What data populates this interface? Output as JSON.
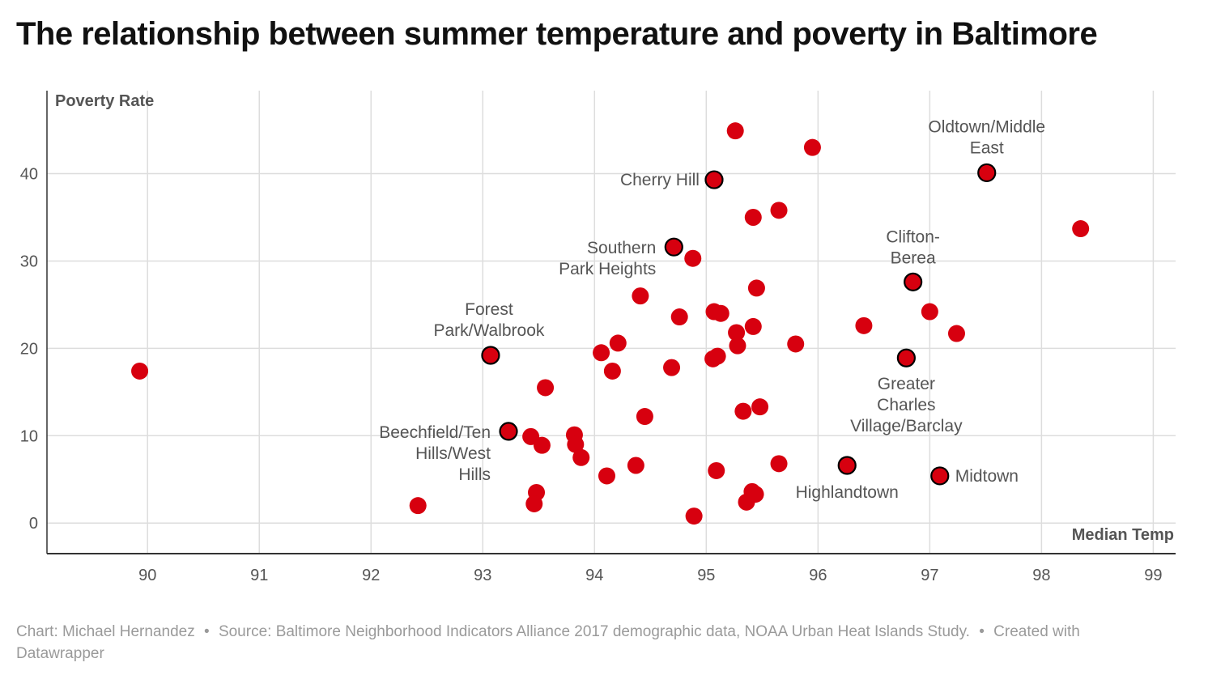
{
  "header": {
    "title": "The relationship between summer temperature and poverty in Baltimore"
  },
  "footer": {
    "author": "Chart: Michael Hernandez",
    "source": "Source: Baltimore Neighborhood Indicators Alliance 2017 demographic data, NOAA Urban Heat Islands Study.",
    "credit": "Created with Datawrapper",
    "separator": "•"
  },
  "colors": {
    "dot": "#d7000f",
    "dot_outline_highlight": "#000000",
    "grid": "#dddddd",
    "axis": "#333333",
    "text": "#555555"
  },
  "chart_data": {
    "type": "scatter",
    "xlabel": "Median Temp",
    "ylabel": "Poverty Rate",
    "xlim": [
      89.1,
      99.2
    ],
    "ylim": [
      -3.5,
      49.5
    ],
    "xticks": [
      90,
      91,
      92,
      93,
      94,
      95,
      96,
      97,
      98,
      99
    ],
    "yticks": [
      0,
      10,
      20,
      30,
      40
    ],
    "grid": true,
    "points": [
      {
        "x": 89.93,
        "y": 17.4
      },
      {
        "x": 92.42,
        "y": 2.0
      },
      {
        "x": 93.43,
        "y": 9.9
      },
      {
        "x": 93.53,
        "y": 8.9
      },
      {
        "x": 93.48,
        "y": 3.5
      },
      {
        "x": 93.46,
        "y": 2.2
      },
      {
        "x": 93.56,
        "y": 15.5
      },
      {
        "x": 93.82,
        "y": 10.1
      },
      {
        "x": 93.83,
        "y": 9.0
      },
      {
        "x": 93.88,
        "y": 7.5
      },
      {
        "x": 94.06,
        "y": 19.5
      },
      {
        "x": 94.21,
        "y": 20.6
      },
      {
        "x": 94.16,
        "y": 17.4
      },
      {
        "x": 94.11,
        "y": 5.4
      },
      {
        "x": 94.37,
        "y": 6.6
      },
      {
        "x": 94.41,
        "y": 26.0
      },
      {
        "x": 94.45,
        "y": 12.2
      },
      {
        "x": 94.69,
        "y": 17.8
      },
      {
        "x": 94.76,
        "y": 23.6
      },
      {
        "x": 94.88,
        "y": 30.3
      },
      {
        "x": 94.89,
        "y": 0.8
      },
      {
        "x": 95.07,
        "y": 24.2
      },
      {
        "x": 95.13,
        "y": 24.0
      },
      {
        "x": 95.06,
        "y": 18.8
      },
      {
        "x": 95.1,
        "y": 19.1
      },
      {
        "x": 95.09,
        "y": 6.0
      },
      {
        "x": 95.26,
        "y": 44.9
      },
      {
        "x": 95.27,
        "y": 21.8
      },
      {
        "x": 95.28,
        "y": 20.3
      },
      {
        "x": 95.33,
        "y": 12.8
      },
      {
        "x": 95.36,
        "y": 2.4
      },
      {
        "x": 95.41,
        "y": 3.6
      },
      {
        "x": 95.44,
        "y": 3.3
      },
      {
        "x": 95.42,
        "y": 35.0
      },
      {
        "x": 95.42,
        "y": 22.5
      },
      {
        "x": 95.45,
        "y": 26.9
      },
      {
        "x": 95.48,
        "y": 13.3
      },
      {
        "x": 95.65,
        "y": 35.8
      },
      {
        "x": 95.65,
        "y": 6.8
      },
      {
        "x": 95.8,
        "y": 20.5
      },
      {
        "x": 95.95,
        "y": 43.0
      },
      {
        "x": 96.41,
        "y": 22.6
      },
      {
        "x": 97.0,
        "y": 24.2
      },
      {
        "x": 97.24,
        "y": 21.7
      },
      {
        "x": 98.35,
        "y": 33.7
      },
      {
        "x": 93.07,
        "y": 19.2,
        "label": "Forest Park/Walbrook",
        "highlight": true
      },
      {
        "x": 93.23,
        "y": 10.5,
        "label": "Beechfield/Ten Hills/West Hills",
        "highlight": true
      },
      {
        "x": 94.71,
        "y": 31.6,
        "label": "Southern Park Heights",
        "highlight": true
      },
      {
        "x": 95.07,
        "y": 39.3,
        "label": "Cherry Hill",
        "highlight": true
      },
      {
        "x": 96.26,
        "y": 6.6,
        "label": "Highlandtown",
        "highlight": true
      },
      {
        "x": 96.79,
        "y": 18.9,
        "label": "Greater Charles Village/Barclay",
        "highlight": true
      },
      {
        "x": 96.85,
        "y": 27.6,
        "label": "Clifton-Berea",
        "highlight": true
      },
      {
        "x": 97.09,
        "y": 5.4,
        "label": "Midtown",
        "highlight": true
      },
      {
        "x": 97.51,
        "y": 40.1,
        "label": "Oldtown/Middle East",
        "highlight": true
      }
    ]
  }
}
